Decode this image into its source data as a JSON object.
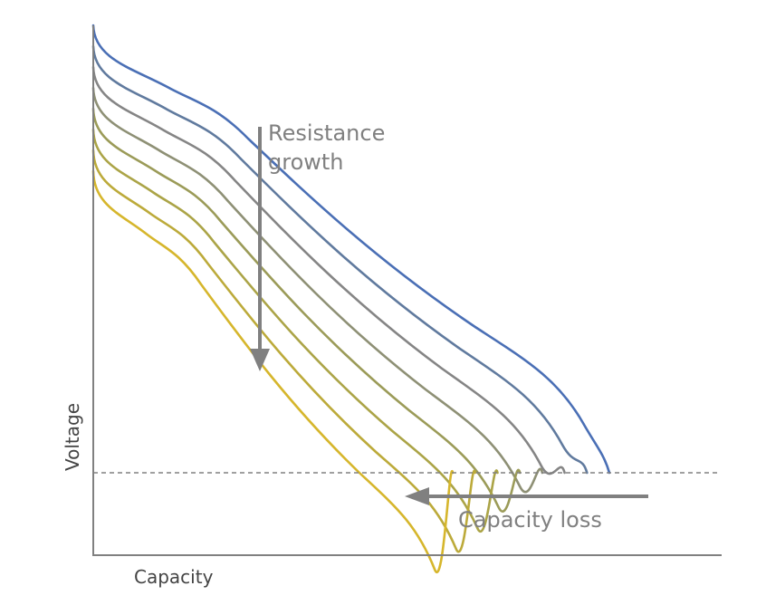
{
  "chart_data": {
    "type": "line",
    "xlabel": "Capacity",
    "ylabel": "Voltage",
    "annotations": {
      "resistance_line1": "Resistance",
      "resistance_line2": "growth",
      "capacity": "Capacity loss"
    },
    "curves": [
      {
        "color": "#4A6FB5"
      },
      {
        "color": "#607A9E"
      },
      {
        "color": "#858585"
      },
      {
        "color": "#8E9075"
      },
      {
        "color": "#9B9B58"
      },
      {
        "color": "#ABA447"
      },
      {
        "color": "#BCAA3A"
      },
      {
        "color": "#D6B62C"
      }
    ],
    "axis_color": "#808080",
    "cutoff_line": {
      "style": "dashed",
      "color": "#808080"
    },
    "arrow_color": "#808080"
  }
}
